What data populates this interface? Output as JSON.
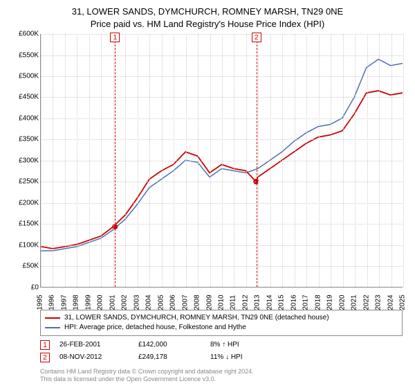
{
  "title_line1": "31, LOWER SANDS, DYMCHURCH, ROMNEY MARSH, TN29 0NE",
  "title_line2": "Price paid vs. HM Land Registry's House Price Index (HPI)",
  "chart": {
    "type": "line",
    "ylim": [
      0,
      600000
    ],
    "ytick_step": 50000,
    "yticks": [
      "£0",
      "£50K",
      "£100K",
      "£150K",
      "£200K",
      "£250K",
      "£300K",
      "£350K",
      "£400K",
      "£450K",
      "£500K",
      "£550K",
      "£600K"
    ],
    "xlim": [
      1995,
      2025
    ],
    "xticks": [
      "1995",
      "1996",
      "1997",
      "1998",
      "1999",
      "2000",
      "2001",
      "2002",
      "2003",
      "2004",
      "2005",
      "2006",
      "2007",
      "2008",
      "2009",
      "2010",
      "2011",
      "2012",
      "2013",
      "2014",
      "2015",
      "2016",
      "2017",
      "2018",
      "2019",
      "2020",
      "2021",
      "2022",
      "2023",
      "2024",
      "2025"
    ],
    "background_color": "#ffffff",
    "grid_color": "#cccccc",
    "series": [
      {
        "name": "price_paid",
        "label": "31, LOWER SANDS, DYMCHURCH, ROMNEY MARSH, TN29 0NE (detached house)",
        "color": "#cc0000",
        "width": 1.8,
        "points": [
          [
            1995,
            95000
          ],
          [
            1996,
            90000
          ],
          [
            1997,
            95000
          ],
          [
            1998,
            100000
          ],
          [
            1999,
            110000
          ],
          [
            2000,
            120000
          ],
          [
            2001,
            142000
          ],
          [
            2002,
            170000
          ],
          [
            2003,
            210000
          ],
          [
            2004,
            255000
          ],
          [
            2005,
            275000
          ],
          [
            2006,
            290000
          ],
          [
            2007,
            320000
          ],
          [
            2008,
            310000
          ],
          [
            2009,
            270000
          ],
          [
            2010,
            290000
          ],
          [
            2011,
            280000
          ],
          [
            2012,
            275000
          ],
          [
            2012.85,
            249178
          ],
          [
            2013,
            260000
          ],
          [
            2014,
            280000
          ],
          [
            2015,
            300000
          ],
          [
            2016,
            320000
          ],
          [
            2017,
            340000
          ],
          [
            2018,
            355000
          ],
          [
            2019,
            360000
          ],
          [
            2020,
            370000
          ],
          [
            2021,
            410000
          ],
          [
            2022,
            460000
          ],
          [
            2023,
            465000
          ],
          [
            2024,
            455000
          ],
          [
            2025,
            460000
          ]
        ]
      },
      {
        "name": "hpi",
        "label": "HPI: Average price, detached house, Folkestone and Hythe",
        "color": "#4a6fb0",
        "width": 1.5,
        "points": [
          [
            1995,
            85000
          ],
          [
            1996,
            85000
          ],
          [
            1997,
            90000
          ],
          [
            1998,
            95000
          ],
          [
            1999,
            105000
          ],
          [
            2000,
            115000
          ],
          [
            2001,
            135000
          ],
          [
            2002,
            160000
          ],
          [
            2003,
            195000
          ],
          [
            2004,
            235000
          ],
          [
            2005,
            255000
          ],
          [
            2006,
            275000
          ],
          [
            2007,
            300000
          ],
          [
            2008,
            295000
          ],
          [
            2009,
            260000
          ],
          [
            2010,
            280000
          ],
          [
            2011,
            275000
          ],
          [
            2012,
            270000
          ],
          [
            2013,
            280000
          ],
          [
            2014,
            300000
          ],
          [
            2015,
            320000
          ],
          [
            2016,
            345000
          ],
          [
            2017,
            365000
          ],
          [
            2018,
            380000
          ],
          [
            2019,
            385000
          ],
          [
            2020,
            400000
          ],
          [
            2021,
            450000
          ],
          [
            2022,
            520000
          ],
          [
            2023,
            540000
          ],
          [
            2024,
            525000
          ],
          [
            2025,
            530000
          ]
        ]
      }
    ],
    "markers": [
      {
        "n": "1",
        "x": 2001.15,
        "price": 142000
      },
      {
        "n": "2",
        "x": 2012.85,
        "price": 249178
      }
    ]
  },
  "legend": {
    "s1": "31, LOWER SANDS, DYMCHURCH, ROMNEY MARSH, TN29 0NE (detached house)",
    "s2": "HPI: Average price, detached house, Folkestone and Hythe"
  },
  "events": [
    {
      "n": "1",
      "date": "26-FEB-2001",
      "price": "£142,000",
      "delta": "8% ↑ HPI"
    },
    {
      "n": "2",
      "date": "08-NOV-2012",
      "price": "£249,178",
      "delta": "11% ↓ HPI"
    }
  ],
  "attribution_line1": "Contains HM Land Registry data © Crown copyright and database right 2024.",
  "attribution_line2": "This data is licensed under the Open Government Licence v3.0."
}
